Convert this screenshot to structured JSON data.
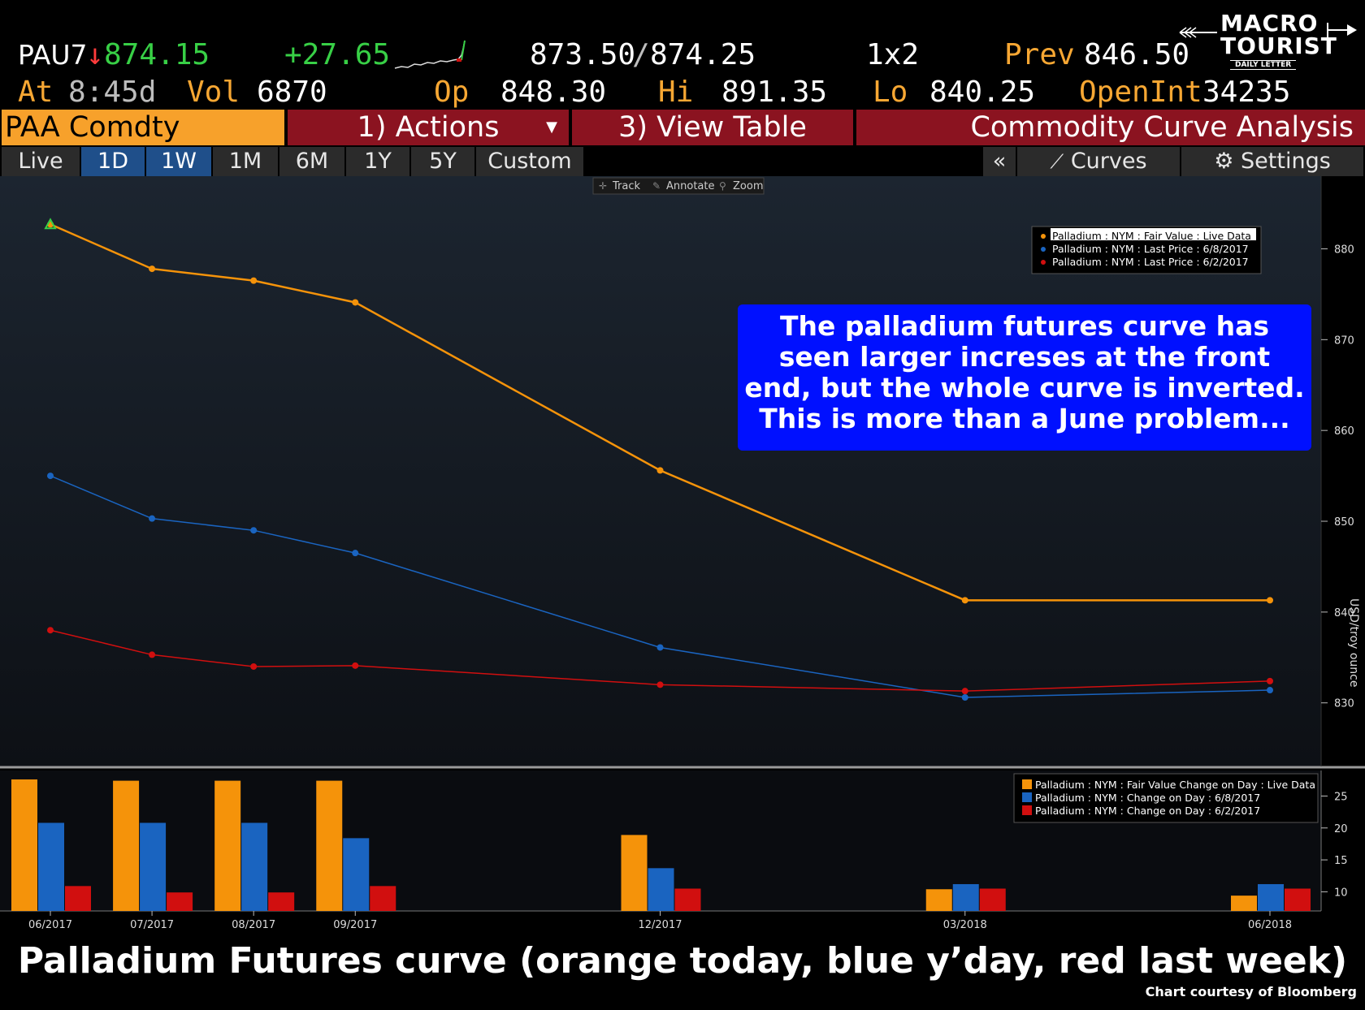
{
  "quote": {
    "ticker": "PAU7",
    "arrow": "↓",
    "last": "874.15",
    "change": "+27.65",
    "bid_ask_bid": "873.50",
    "bid_ask_sep": "/",
    "bid_ask_ask": "874.25",
    "size": "1x2",
    "prev_label": "Prev",
    "prev": "846.50",
    "at_label": "At",
    "at_value": "8:45d",
    "vol_label": "Vol",
    "vol": "6870",
    "op_label": "Op",
    "op": "848.30",
    "hi_label": "Hi",
    "hi": "891.35",
    "lo_label": "Lo",
    "lo": "840.25",
    "oi_label": "OpenInt",
    "oi": "34235"
  },
  "logo": {
    "line1": "MACRO",
    "line2": "TOURIST",
    "line3": "DAILY LETTER"
  },
  "funcbar": {
    "ticker": "PAA Comdty",
    "actions": "1) Actions",
    "view_table": "3) View Table",
    "title": "Commodity Curve Analysis"
  },
  "toolbar": {
    "ranges": [
      "Live",
      "1D",
      "1W",
      "1M",
      "6M",
      "1Y",
      "5Y",
      "Custom"
    ],
    "selected": [
      "1D",
      "1W"
    ],
    "collapse": "«",
    "curves": "Curves",
    "settings": "Settings",
    "chart_tools": [
      "Track",
      "Annotate",
      "Zoom"
    ]
  },
  "annotation": [
    "The palladium futures curve has",
    "seen larger increses at the front",
    "end, but the whole curve is inverted.",
    "This is more than a June problem..."
  ],
  "caption": "Palladium Futures curve (orange today, blue y’day, red last week)",
  "credit": "Chart courtesy of Bloomberg",
  "colors": {
    "orange": "#f5930a",
    "blue": "#1a64c0",
    "red": "#d10f0f",
    "accent_bar": "#f7a12b",
    "func_red": "#8b1320"
  },
  "chart_data": [
    {
      "type": "line",
      "x": [
        "06/2017",
        "07/2017",
        "08/2017",
        "09/2017",
        "12/2017",
        "03/2018",
        "06/2018"
      ],
      "x_months": [
        0,
        1,
        2,
        3,
        6,
        9,
        12
      ],
      "ylabel": "USD/troy ounce",
      "ylim": [
        823,
        888
      ],
      "yticks": [
        830,
        840,
        850,
        860,
        870,
        880
      ],
      "legend_position": "top-right",
      "series": [
        {
          "name": "Palladium : NYM : Fair Value : Live Data",
          "color": "#f5930a",
          "values": [
            882.7,
            877.8,
            876.5,
            874.1,
            855.6,
            841.3,
            841.3
          ]
        },
        {
          "name": "Palladium : NYM : Last Price : 6/8/2017",
          "color": "#1a64c0",
          "values": [
            855.0,
            850.3,
            849.0,
            846.5,
            836.1,
            830.6,
            831.4
          ]
        },
        {
          "name": "Palladium : NYM : Last Price : 6/2/2017",
          "color": "#d10f0f",
          "values": [
            838.0,
            835.3,
            834.0,
            834.1,
            832.0,
            831.3,
            832.4
          ]
        }
      ]
    },
    {
      "type": "bar",
      "categories": [
        "06/2017",
        "07/2017",
        "08/2017",
        "09/2017",
        "12/2017",
        "03/2018",
        "06/2018"
      ],
      "x_months": [
        0,
        1,
        2,
        3,
        6,
        9,
        12
      ],
      "ylim": [
        7,
        29
      ],
      "yticks": [
        10,
        15,
        20,
        25
      ],
      "legend_position": "top-right",
      "series": [
        {
          "name": "Palladium : NYM : Fair Value Change on Day : Live Data",
          "color": "#f5930a",
          "values": [
            27.6,
            27.4,
            27.4,
            27.4,
            18.9,
            10.4,
            9.4
          ]
        },
        {
          "name": "Palladium : NYM : Change on Day : 6/8/2017",
          "color": "#1a64c0",
          "values": [
            20.8,
            20.8,
            20.8,
            18.4,
            13.7,
            11.2,
            11.2
          ]
        },
        {
          "name": "Palladium : NYM : Change on Day : 6/2/2017",
          "color": "#d10f0f",
          "values": [
            10.9,
            9.9,
            9.9,
            10.9,
            10.5,
            10.5,
            10.5
          ]
        }
      ]
    }
  ]
}
